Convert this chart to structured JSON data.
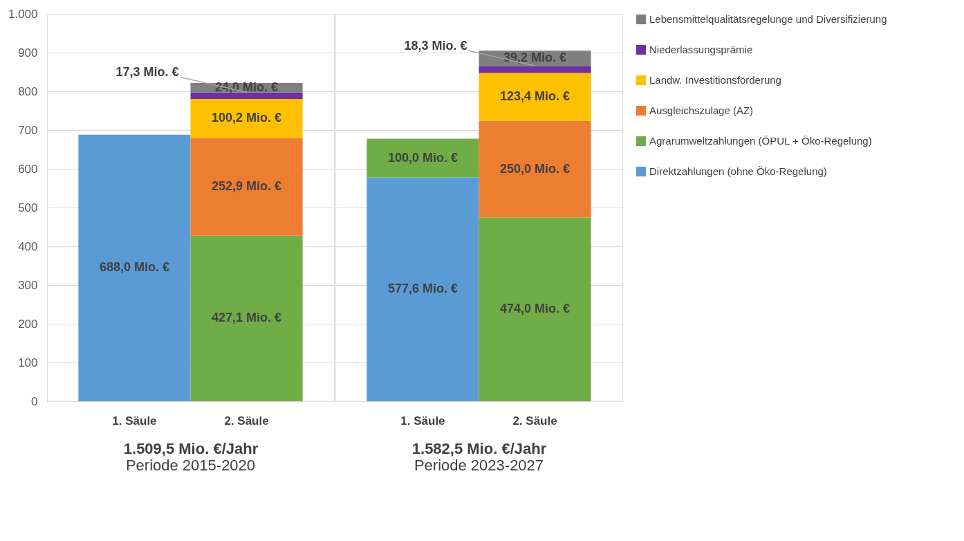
{
  "chart_data": [
    {
      "type": "bar",
      "stacked": true,
      "categories": [
        "1. Säule",
        "2. Säule"
      ],
      "xlabel": "1.509,5 Mio. €/Jahr",
      "annotations": [
        "Periode 2015-2020",
        {
          "text": "17,3 Mio. €",
          "x": "2. Säule",
          "y": 797.5
        }
      ],
      "ylim": [
        0,
        1000
      ],
      "yticks": [
        0,
        100,
        200,
        300,
        400,
        500,
        600,
        700,
        800,
        900,
        {
          "value": 1000,
          "label": "1.000"
        }
      ],
      "grid": "y",
      "legend": "right",
      "series": [
        {
          "name": "Direktzahlungen (ohne Öko-Regelung)",
          "color": "#5b9bd5",
          "values": [
            688.0,
            null
          ],
          "value_labels": [
            "688,0 Mio. €",
            null
          ]
        },
        {
          "name": "Agrarumweltzahlungen (ÖPUL + Öko-Regelung)",
          "color": "#70ad47",
          "values": [
            null,
            427.1
          ],
          "value_labels": [
            null,
            "427,1 Mio. €"
          ]
        },
        {
          "name": "Ausgleichszulage (AZ)",
          "color": "#ed7d31",
          "values": [
            null,
            252.9
          ],
          "value_labels": [
            null,
            "252,9 Mio. €"
          ]
        },
        {
          "name": "Landw. Investitionsförderung",
          "color": "#ffc000",
          "values": [
            null,
            100.2
          ],
          "value_labels": [
            null,
            "100,2 Mio. €"
          ]
        },
        {
          "name": "Niederlassungsprämie",
          "color": "#7030a0",
          "values": [
            null,
            17.3
          ]
        },
        {
          "name": "Lebensmittelqualitätsregelunge und Diversifizierung",
          "color": "#7f7f7f",
          "values": [
            null,
            24.0
          ],
          "value_labels": [
            null,
            "24,0 Mio. €"
          ]
        }
      ]
    },
    {
      "type": "bar",
      "stacked": true,
      "categories": [
        "1. Säule",
        "2. Säule"
      ],
      "xlabel": "1.582,5 Mio. €/Jahr",
      "annotations": [
        "Periode 2023-2027",
        {
          "text": "18,3 Mio. €",
          "x": "2. Säule",
          "y": 865.7
        }
      ],
      "ylim": [
        0,
        1000
      ],
      "yticks": [
        0,
        100,
        200,
        300,
        400,
        500,
        600,
        700,
        800,
        900,
        1000
      ],
      "grid": "y",
      "legend": "right",
      "tick_labels": "x",
      "series": [
        {
          "name": "Direktzahlungen (ohne Öko-Regelung)",
          "color": "#5b9bd5",
          "values": [
            577.6,
            null
          ],
          "value_labels": [
            "577,6 Mio. €",
            null
          ]
        },
        {
          "name": "Agrarumweltzahlungen (ÖPUL + Öko-Regelung)",
          "color": "#70ad47",
          "values": [
            100.0,
            474.0
          ],
          "value_labels": [
            "100,0 Mio. €",
            "474,0 Mio. €"
          ]
        },
        {
          "name": "Ausgleichszulage (AZ)",
          "color": "#ed7d31",
          "values": [
            null,
            250.0
          ],
          "value_labels": [
            null,
            "250,0 Mio. €"
          ]
        },
        {
          "name": "Landw. Investitionsförderung",
          "color": "#ffc000",
          "values": [
            null,
            123.4
          ],
          "value_labels": [
            null,
            "123,4 Mio. €"
          ]
        },
        {
          "name": "Niederlassungsprämie",
          "color": "#7030a0",
          "values": [
            null,
            18.3
          ]
        },
        {
          "name": "Lebensmittelqualitätsregelunge und Diversifizierung",
          "color": "#7f7f7f",
          "values": [
            null,
            39.2
          ],
          "value_labels": [
            null,
            "39,2 Mio. €"
          ]
        }
      ]
    }
  ]
}
